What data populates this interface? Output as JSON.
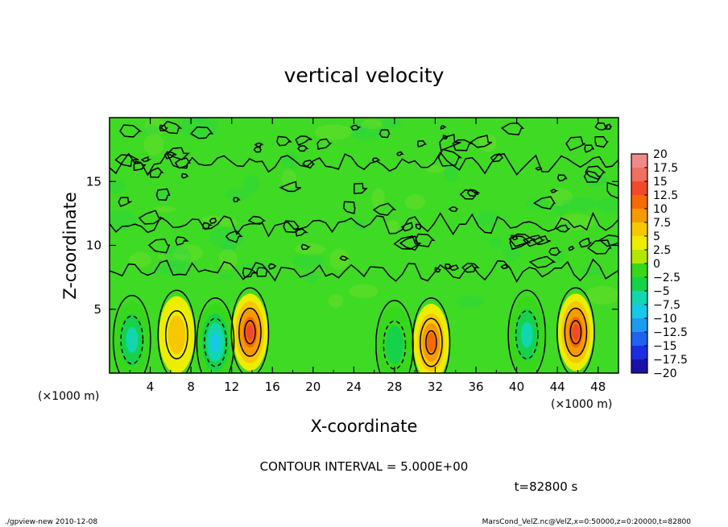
{
  "chart_data": {
    "type": "heatmap",
    "title": "vertical velocity",
    "xlabel": "X-coordinate",
    "ylabel": "Z-coordinate",
    "x_unit": "(×1000 m)",
    "y_unit": "(×1000 m)",
    "xlim": [
      0,
      50
    ],
    "ylim": [
      0,
      20
    ],
    "x_ticks": [
      4,
      8,
      12,
      16,
      20,
      24,
      28,
      32,
      36,
      40,
      44,
      48
    ],
    "y_ticks": [
      5,
      10,
      15
    ],
    "contour_interval_text": "CONTOUR INTERVAL = 5.000E+00",
    "time_text": "t=82800 s",
    "colorbar": {
      "levels": [
        20,
        17.5,
        15,
        12.5,
        10,
        7.5,
        5,
        2.5,
        0,
        -2.5,
        -5,
        -7.5,
        -10,
        -12.5,
        -15,
        -17.5,
        -20
      ],
      "colors": [
        "#f08a8a",
        "#f06f5f",
        "#f24a28",
        "#f56b00",
        "#f59a00",
        "#f7c800",
        "#eded00",
        "#b4e600",
        "#37d81c",
        "#16d24a",
        "#12d6b0",
        "#17c8e8",
        "#1e9bf0",
        "#1f63f0",
        "#1a2ee0",
        "#1a12a8",
        "#6a0fb0"
      ]
    },
    "cells": [
      {
        "x": 2.2,
        "z": 2.6,
        "w": -8
      },
      {
        "x": 6.6,
        "z": 3.0,
        "w": 5
      },
      {
        "x": 10.4,
        "z": 2.4,
        "w": -9
      },
      {
        "x": 13.8,
        "z": 3.2,
        "w": 12
      },
      {
        "x": 28.0,
        "z": 2.2,
        "w": -5
      },
      {
        "x": 31.6,
        "z": 2.4,
        "w": 11
      },
      {
        "x": 41.0,
        "z": 3.0,
        "w": -8
      },
      {
        "x": 45.8,
        "z": 3.2,
        "w": 13
      }
    ]
  },
  "footer": {
    "left": "./gpview-new  2010-12-08",
    "right": "MarsCond_VelZ.nc@VelZ,x=0:50000,z=0:20000,t=82800"
  }
}
